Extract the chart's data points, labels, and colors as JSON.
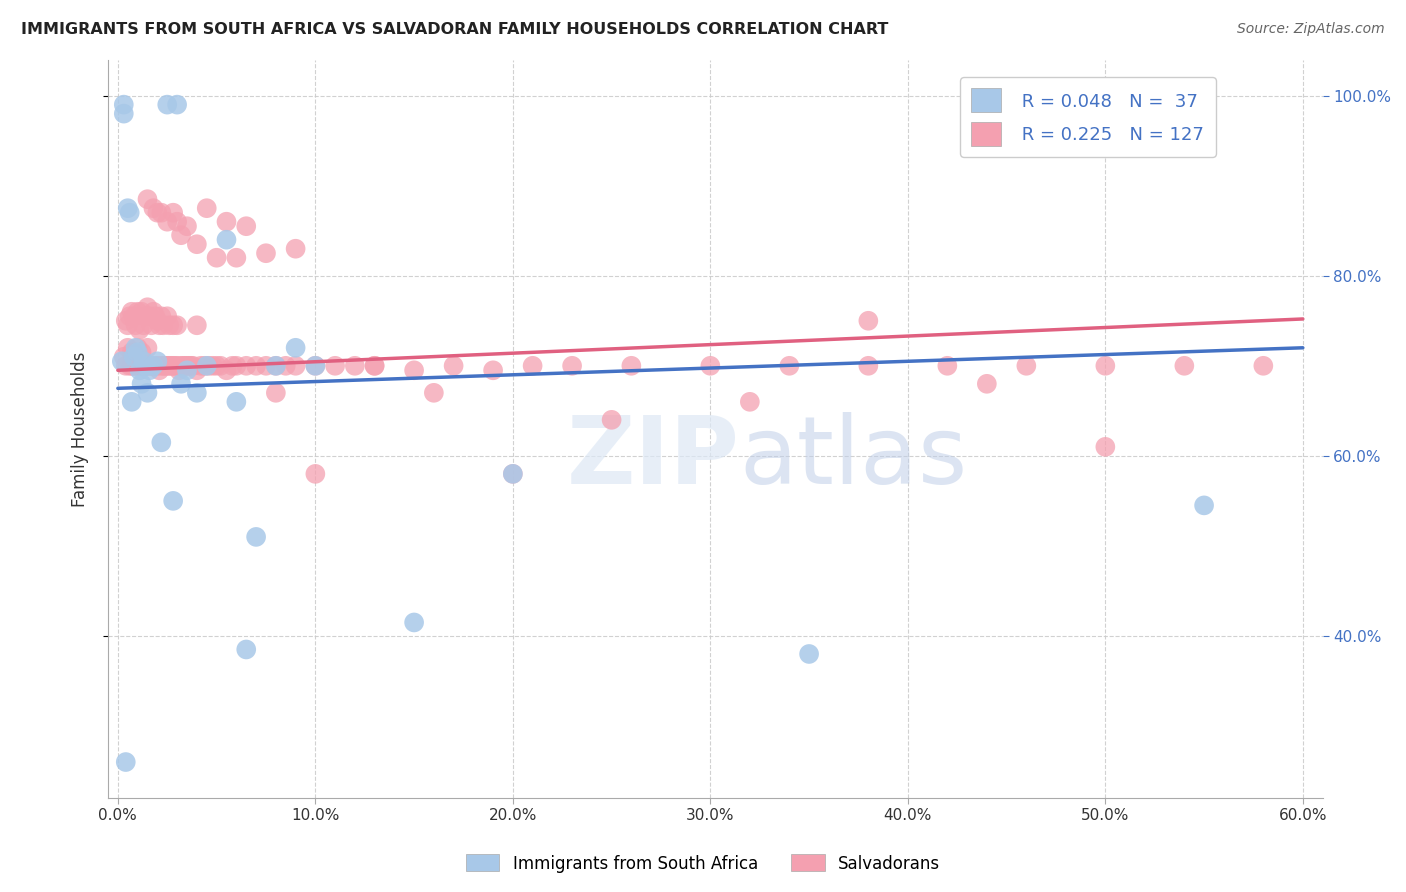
{
  "title": "IMMIGRANTS FROM SOUTH AFRICA VS SALVADORAN FAMILY HOUSEHOLDS CORRELATION CHART",
  "source": "Source: ZipAtlas.com",
  "ylabel": "Family Households",
  "legend_label1": "Immigrants from South Africa",
  "legend_label2": "Salvadorans",
  "r1": "0.048",
  "n1": "37",
  "r2": "0.225",
  "n2": "127",
  "color1": "#a8c8e8",
  "color2": "#f4a0b0",
  "line_color1": "#4472c4",
  "line_color2": "#e06080",
  "xlim": [
    -0.005,
    0.61
  ],
  "ylim": [
    0.22,
    1.04
  ],
  "x_ticks": [
    0.0,
    0.1,
    0.2,
    0.3,
    0.4,
    0.5,
    0.6
  ],
  "y_ticks": [
    0.4,
    0.6,
    0.8,
    1.0
  ],
  "blue_x": [
    0.002,
    0.003,
    0.003,
    0.004,
    0.005,
    0.006,
    0.007,
    0.008,
    0.009,
    0.01,
    0.011,
    0.012,
    0.013,
    0.014,
    0.015,
    0.016,
    0.018,
    0.02,
    0.022,
    0.025,
    0.028,
    0.03,
    0.032,
    0.035,
    0.04,
    0.045,
    0.055,
    0.06,
    0.065,
    0.07,
    0.08,
    0.09,
    0.1,
    0.15,
    0.2,
    0.35,
    0.55
  ],
  "blue_y": [
    0.705,
    0.99,
    0.98,
    0.26,
    0.875,
    0.87,
    0.66,
    0.71,
    0.72,
    0.715,
    0.695,
    0.68,
    0.705,
    0.7,
    0.67,
    0.695,
    0.7,
    0.705,
    0.615,
    0.99,
    0.55,
    0.99,
    0.68,
    0.695,
    0.67,
    0.7,
    0.84,
    0.66,
    0.385,
    0.51,
    0.7,
    0.72,
    0.7,
    0.415,
    0.58,
    0.38,
    0.545
  ],
  "pink_x": [
    0.003,
    0.004,
    0.004,
    0.005,
    0.005,
    0.006,
    0.006,
    0.007,
    0.007,
    0.007,
    0.008,
    0.008,
    0.008,
    0.009,
    0.009,
    0.01,
    0.01,
    0.01,
    0.011,
    0.011,
    0.012,
    0.012,
    0.012,
    0.013,
    0.013,
    0.014,
    0.014,
    0.015,
    0.015,
    0.015,
    0.016,
    0.016,
    0.017,
    0.017,
    0.018,
    0.018,
    0.019,
    0.019,
    0.02,
    0.02,
    0.021,
    0.021,
    0.022,
    0.022,
    0.023,
    0.023,
    0.024,
    0.025,
    0.025,
    0.026,
    0.026,
    0.027,
    0.028,
    0.028,
    0.029,
    0.03,
    0.03,
    0.031,
    0.032,
    0.033,
    0.034,
    0.035,
    0.036,
    0.037,
    0.038,
    0.04,
    0.04,
    0.042,
    0.044,
    0.046,
    0.048,
    0.05,
    0.052,
    0.055,
    0.058,
    0.06,
    0.065,
    0.07,
    0.075,
    0.08,
    0.085,
    0.09,
    0.1,
    0.11,
    0.12,
    0.13,
    0.15,
    0.17,
    0.19,
    0.21,
    0.23,
    0.26,
    0.3,
    0.34,
    0.38,
    0.42,
    0.46,
    0.5,
    0.54,
    0.58,
    0.015,
    0.02,
    0.025,
    0.018,
    0.022,
    0.03,
    0.035,
    0.045,
    0.055,
    0.065,
    0.08,
    0.1,
    0.13,
    0.16,
    0.2,
    0.25,
    0.32,
    0.38,
    0.44,
    0.5,
    0.028,
    0.032,
    0.04,
    0.05,
    0.06,
    0.075,
    0.09
  ],
  "pink_y": [
    0.71,
    0.7,
    0.75,
    0.72,
    0.745,
    0.7,
    0.755,
    0.7,
    0.715,
    0.76,
    0.7,
    0.715,
    0.755,
    0.7,
    0.745,
    0.7,
    0.72,
    0.76,
    0.7,
    0.74,
    0.7,
    0.715,
    0.76,
    0.7,
    0.745,
    0.7,
    0.755,
    0.7,
    0.72,
    0.765,
    0.7,
    0.755,
    0.7,
    0.745,
    0.7,
    0.76,
    0.7,
    0.755,
    0.7,
    0.75,
    0.695,
    0.745,
    0.7,
    0.755,
    0.7,
    0.745,
    0.7,
    0.7,
    0.755,
    0.7,
    0.745,
    0.7,
    0.7,
    0.745,
    0.7,
    0.7,
    0.745,
    0.695,
    0.7,
    0.7,
    0.7,
    0.7,
    0.7,
    0.7,
    0.7,
    0.695,
    0.745,
    0.7,
    0.7,
    0.7,
    0.7,
    0.7,
    0.7,
    0.695,
    0.7,
    0.7,
    0.7,
    0.7,
    0.7,
    0.7,
    0.7,
    0.7,
    0.7,
    0.7,
    0.7,
    0.7,
    0.695,
    0.7,
    0.695,
    0.7,
    0.7,
    0.7,
    0.7,
    0.7,
    0.7,
    0.7,
    0.7,
    0.7,
    0.7,
    0.7,
    0.885,
    0.87,
    0.86,
    0.875,
    0.87,
    0.86,
    0.855,
    0.875,
    0.86,
    0.855,
    0.67,
    0.58,
    0.7,
    0.67,
    0.58,
    0.64,
    0.66,
    0.75,
    0.68,
    0.61,
    0.87,
    0.845,
    0.835,
    0.82,
    0.82,
    0.825,
    0.83
  ]
}
